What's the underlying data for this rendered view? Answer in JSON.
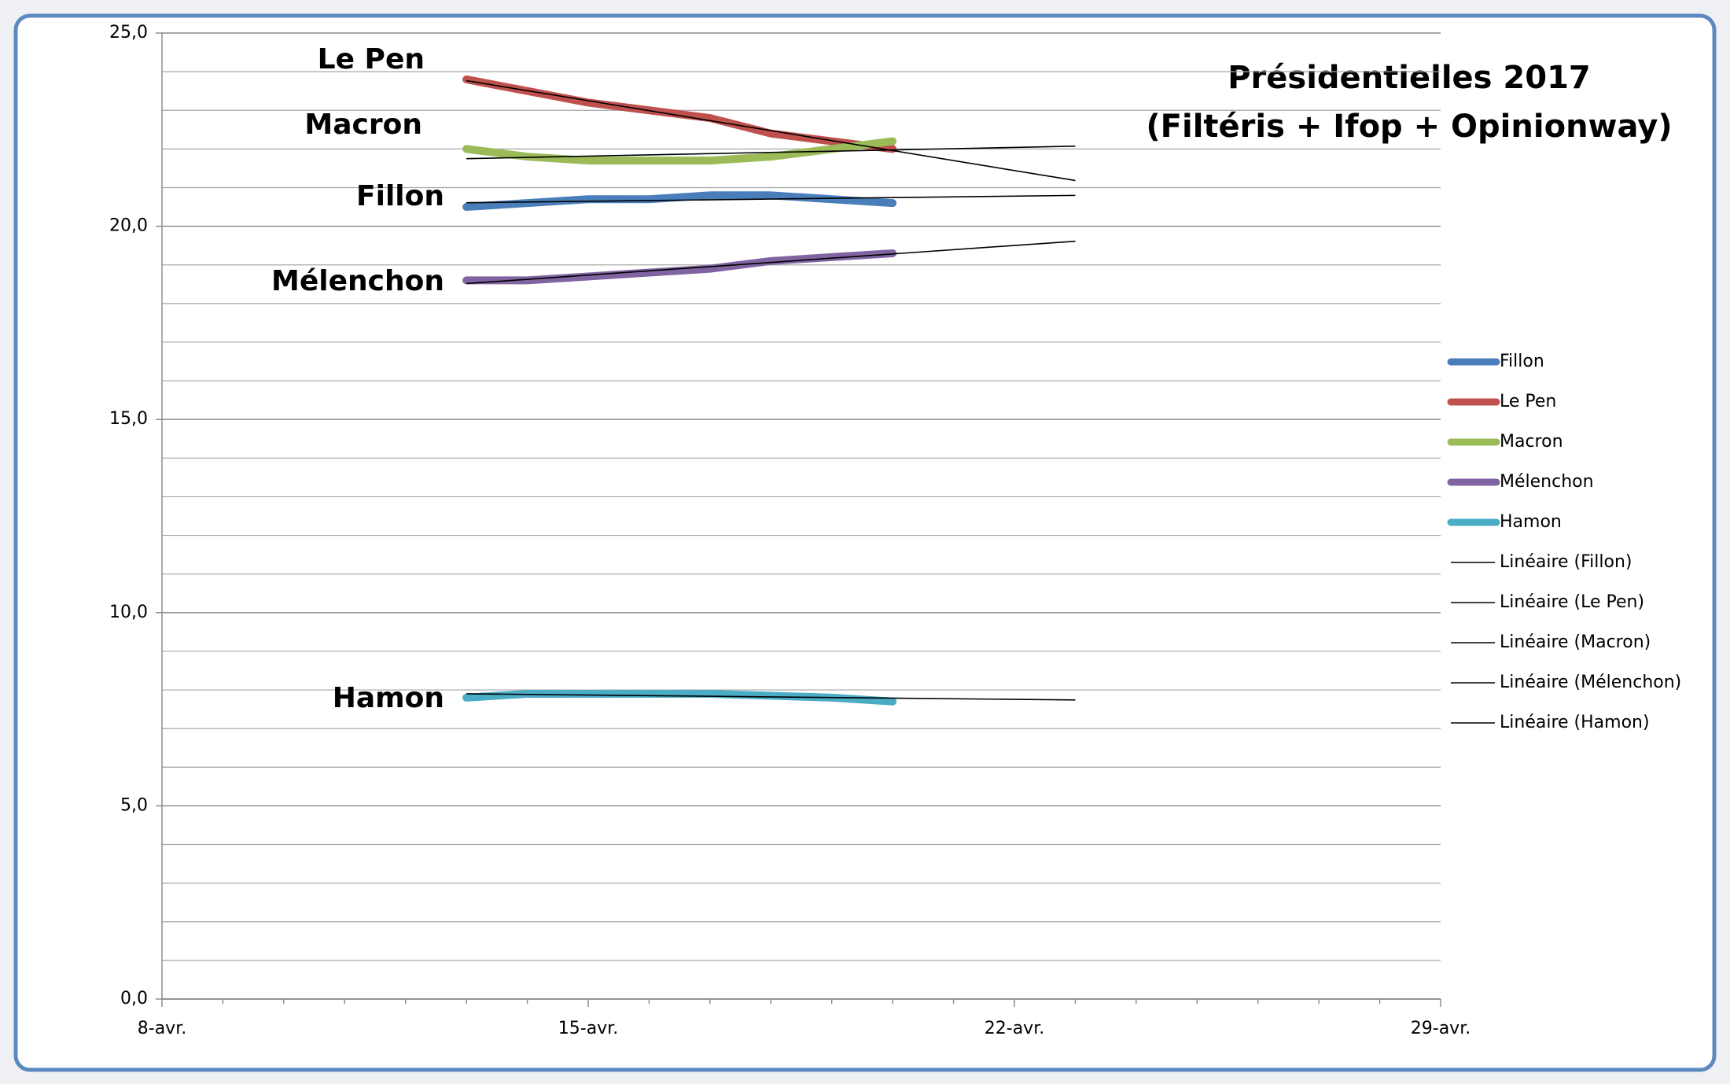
{
  "chart_data": {
    "type": "line",
    "title": "Présidentielles 2017",
    "subtitle": "(Filtéris + Ifop + Opinionway)",
    "x": [
      13,
      14,
      15,
      16,
      17,
      18,
      19,
      20
    ],
    "xlim": [
      8,
      29
    ],
    "xticks": [
      {
        "value": 8,
        "label": "8-avr."
      },
      {
        "value": 15,
        "label": "15-avr."
      },
      {
        "value": 22,
        "label": "22-avr."
      },
      {
        "value": 29,
        "label": "29-avr."
      }
    ],
    "minor_xticks": [
      9,
      10,
      11,
      12,
      13,
      14,
      16,
      17,
      18,
      19,
      20,
      21,
      23,
      24,
      25,
      26,
      27,
      28
    ],
    "ylim": [
      0,
      25
    ],
    "yticks": [
      {
        "value": 0,
        "label": "0,0"
      },
      {
        "value": 5,
        "label": "5,0"
      },
      {
        "value": 10,
        "label": "10,0"
      },
      {
        "value": 15,
        "label": "15,0"
      },
      {
        "value": 20,
        "label": "20,0"
      },
      {
        "value": 25,
        "label": "25,0"
      }
    ],
    "minor_yticks": [
      1,
      2,
      3,
      4,
      6,
      7,
      8,
      9,
      11,
      12,
      13,
      14,
      16,
      17,
      18,
      19,
      21,
      22,
      23,
      24
    ],
    "grid": true,
    "legend": "right",
    "trendline_forward": 3,
    "trendline_color": "#000000",
    "series": [
      {
        "name": "Fillon",
        "color": "#4a7ebb",
        "trendline_name": "Linéaire (Fillon)",
        "values": [
          20.5,
          20.6,
          20.7,
          20.7,
          20.8,
          20.8,
          20.7,
          20.6
        ]
      },
      {
        "name": "Le Pen",
        "color": "#c0504d",
        "trendline_name": "Linéaire (Le Pen)",
        "values": [
          23.8,
          23.5,
          23.2,
          23.0,
          22.8,
          22.4,
          22.2,
          22.0
        ]
      },
      {
        "name": "Macron",
        "color": "#9bbb59",
        "trendline_name": "Linéaire (Macron)",
        "values": [
          22.0,
          21.8,
          21.7,
          21.7,
          21.7,
          21.8,
          22.0,
          22.2
        ]
      },
      {
        "name": "Mélenchon",
        "color": "#8064a2",
        "trendline_name": "Linéaire (Mélenchon)",
        "values": [
          18.6,
          18.6,
          18.7,
          18.8,
          18.9,
          19.1,
          19.2,
          19.3
        ]
      },
      {
        "name": "Hamon",
        "color": "#4bacc6",
        "trendline_name": "Linéaire (Hamon)",
        "values": [
          7.8,
          7.9,
          7.9,
          7.9,
          7.9,
          7.85,
          7.8,
          7.7
        ]
      }
    ]
  }
}
